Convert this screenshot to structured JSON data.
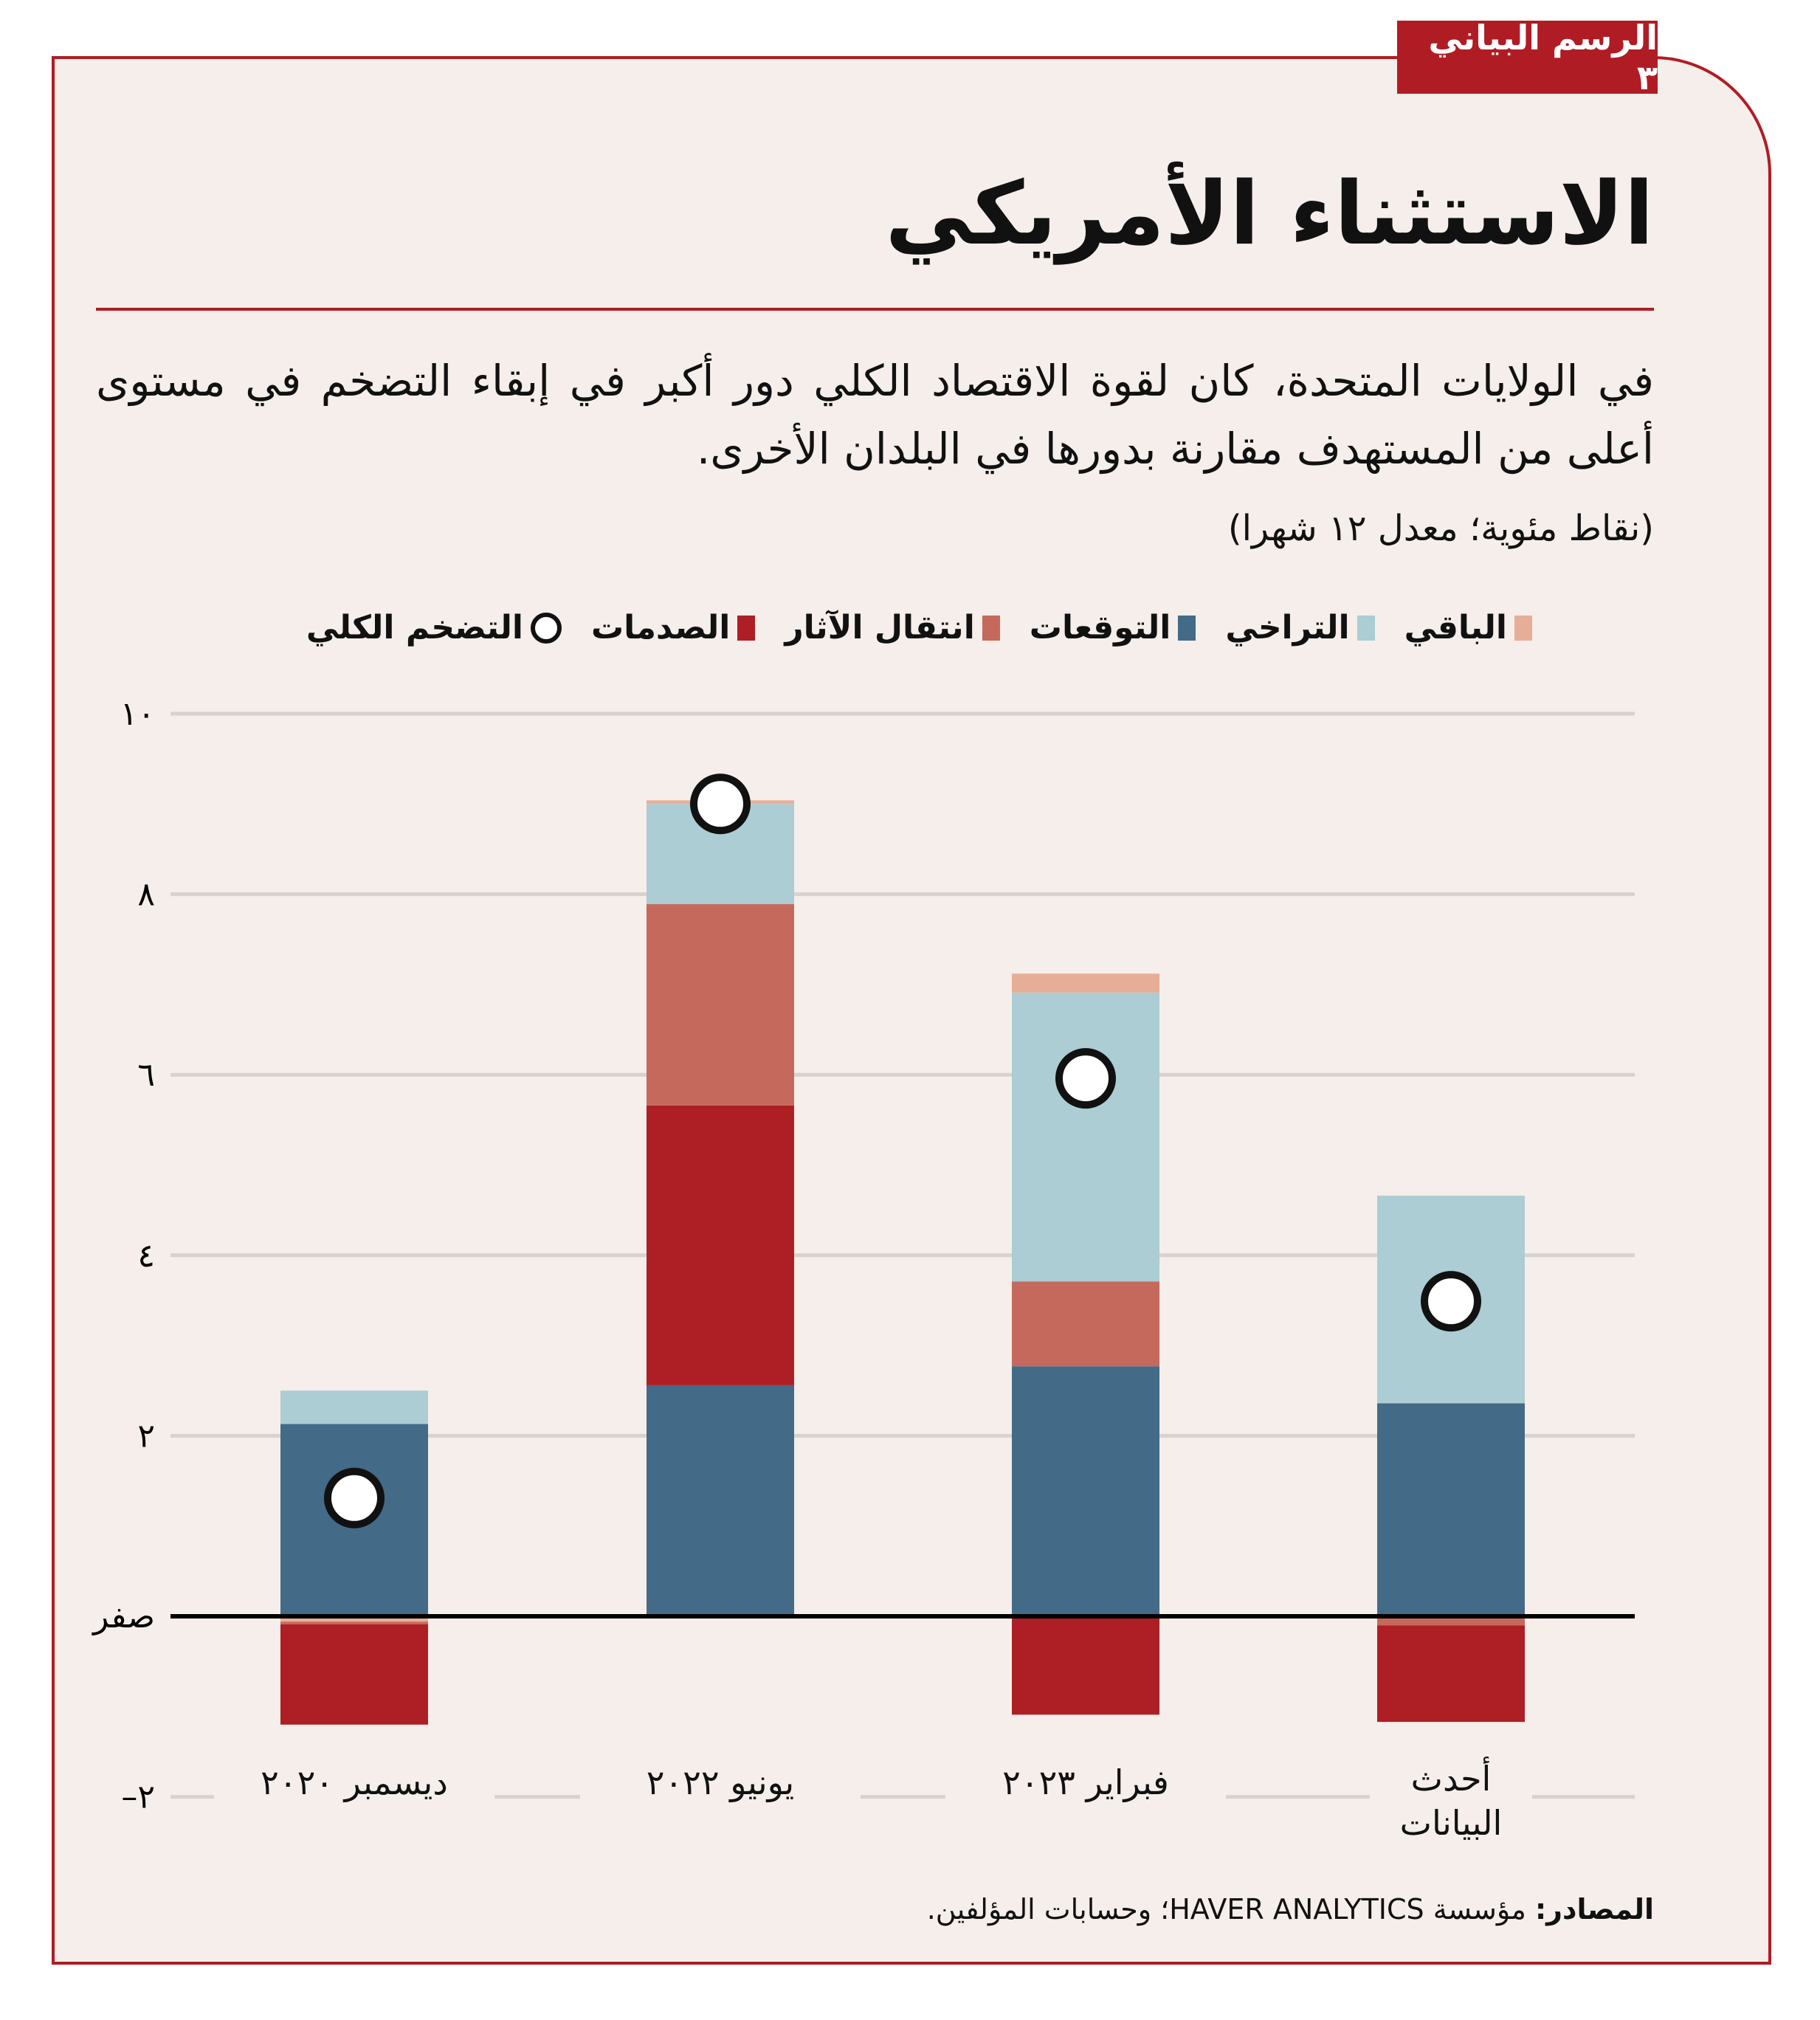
{
  "tag": "الرسم البياني ٣",
  "title": "الاستثناء الأمريكي",
  "subtitle": "في الولايات المتحدة، كان لقوة الاقتصاد الكلي دور أكبر في إبقاء التضخم في مستوى أعلى من المستهدف مقارنة بدورها في البلدان الأخرى.",
  "units": "(نقاط مئوية؛ معدل ١٢ شهرا)",
  "source": {
    "label": "المصادر:",
    "text": " مؤسسة HAVER ANALYTICS؛ وحسابات المؤلفين."
  },
  "colors": {
    "background": "#f5eeea",
    "accent": "#b01c24"
  },
  "chart_data": {
    "type": "bar",
    "stacked": true,
    "categories": [
      "ديسمبر ٢٠٢٠",
      "يونيو ٢٠٢٢",
      "فبراير ٢٠٢٣",
      "أحدث البيانات"
    ],
    "ylim": [
      -2,
      10
    ],
    "grid": true,
    "legend_placement": "top",
    "yticks": [
      {
        "value": 10,
        "label": "١٠"
      },
      {
        "value": 8,
        "label": "٨"
      },
      {
        "value": 6,
        "label": "٦"
      },
      {
        "value": 4,
        "label": "٤"
      },
      {
        "value": 2,
        "label": "٢"
      },
      {
        "value": 0,
        "label": "صفر"
      },
      {
        "value": -2,
        "label": "–٢"
      }
    ],
    "series": [
      {
        "name": "التوقعات",
        "color": "#436a87",
        "values": [
          2.13,
          2.56,
          2.77,
          2.36
        ]
      },
      {
        "name": "الصدمات",
        "color": "#ad1f24",
        "values": [
          -1.11,
          3.1,
          -1.09,
          -1.07
        ]
      },
      {
        "name": "انتقال الآثار",
        "color": "#c5695c",
        "values": [
          -0.03,
          2.23,
          0.94,
          -0.1
        ]
      },
      {
        "name": "التراخي",
        "color": "#abcdd3",
        "values": [
          0.37,
          1.11,
          3.2,
          2.3
        ]
      },
      {
        "name": "الباقي",
        "color": "#e7ae97",
        "values": [
          -0.06,
          0.04,
          0.21,
          0
        ]
      }
    ],
    "headline": {
      "name": "التضخم الكلي",
      "values": [
        1.31,
        9.0,
        5.96,
        3.49
      ]
    },
    "legend_order": [
      "الباقي",
      "التراخي",
      "التوقعات",
      "انتقال الآثار",
      "الصدمات",
      "التضخم الكلي"
    ]
  }
}
